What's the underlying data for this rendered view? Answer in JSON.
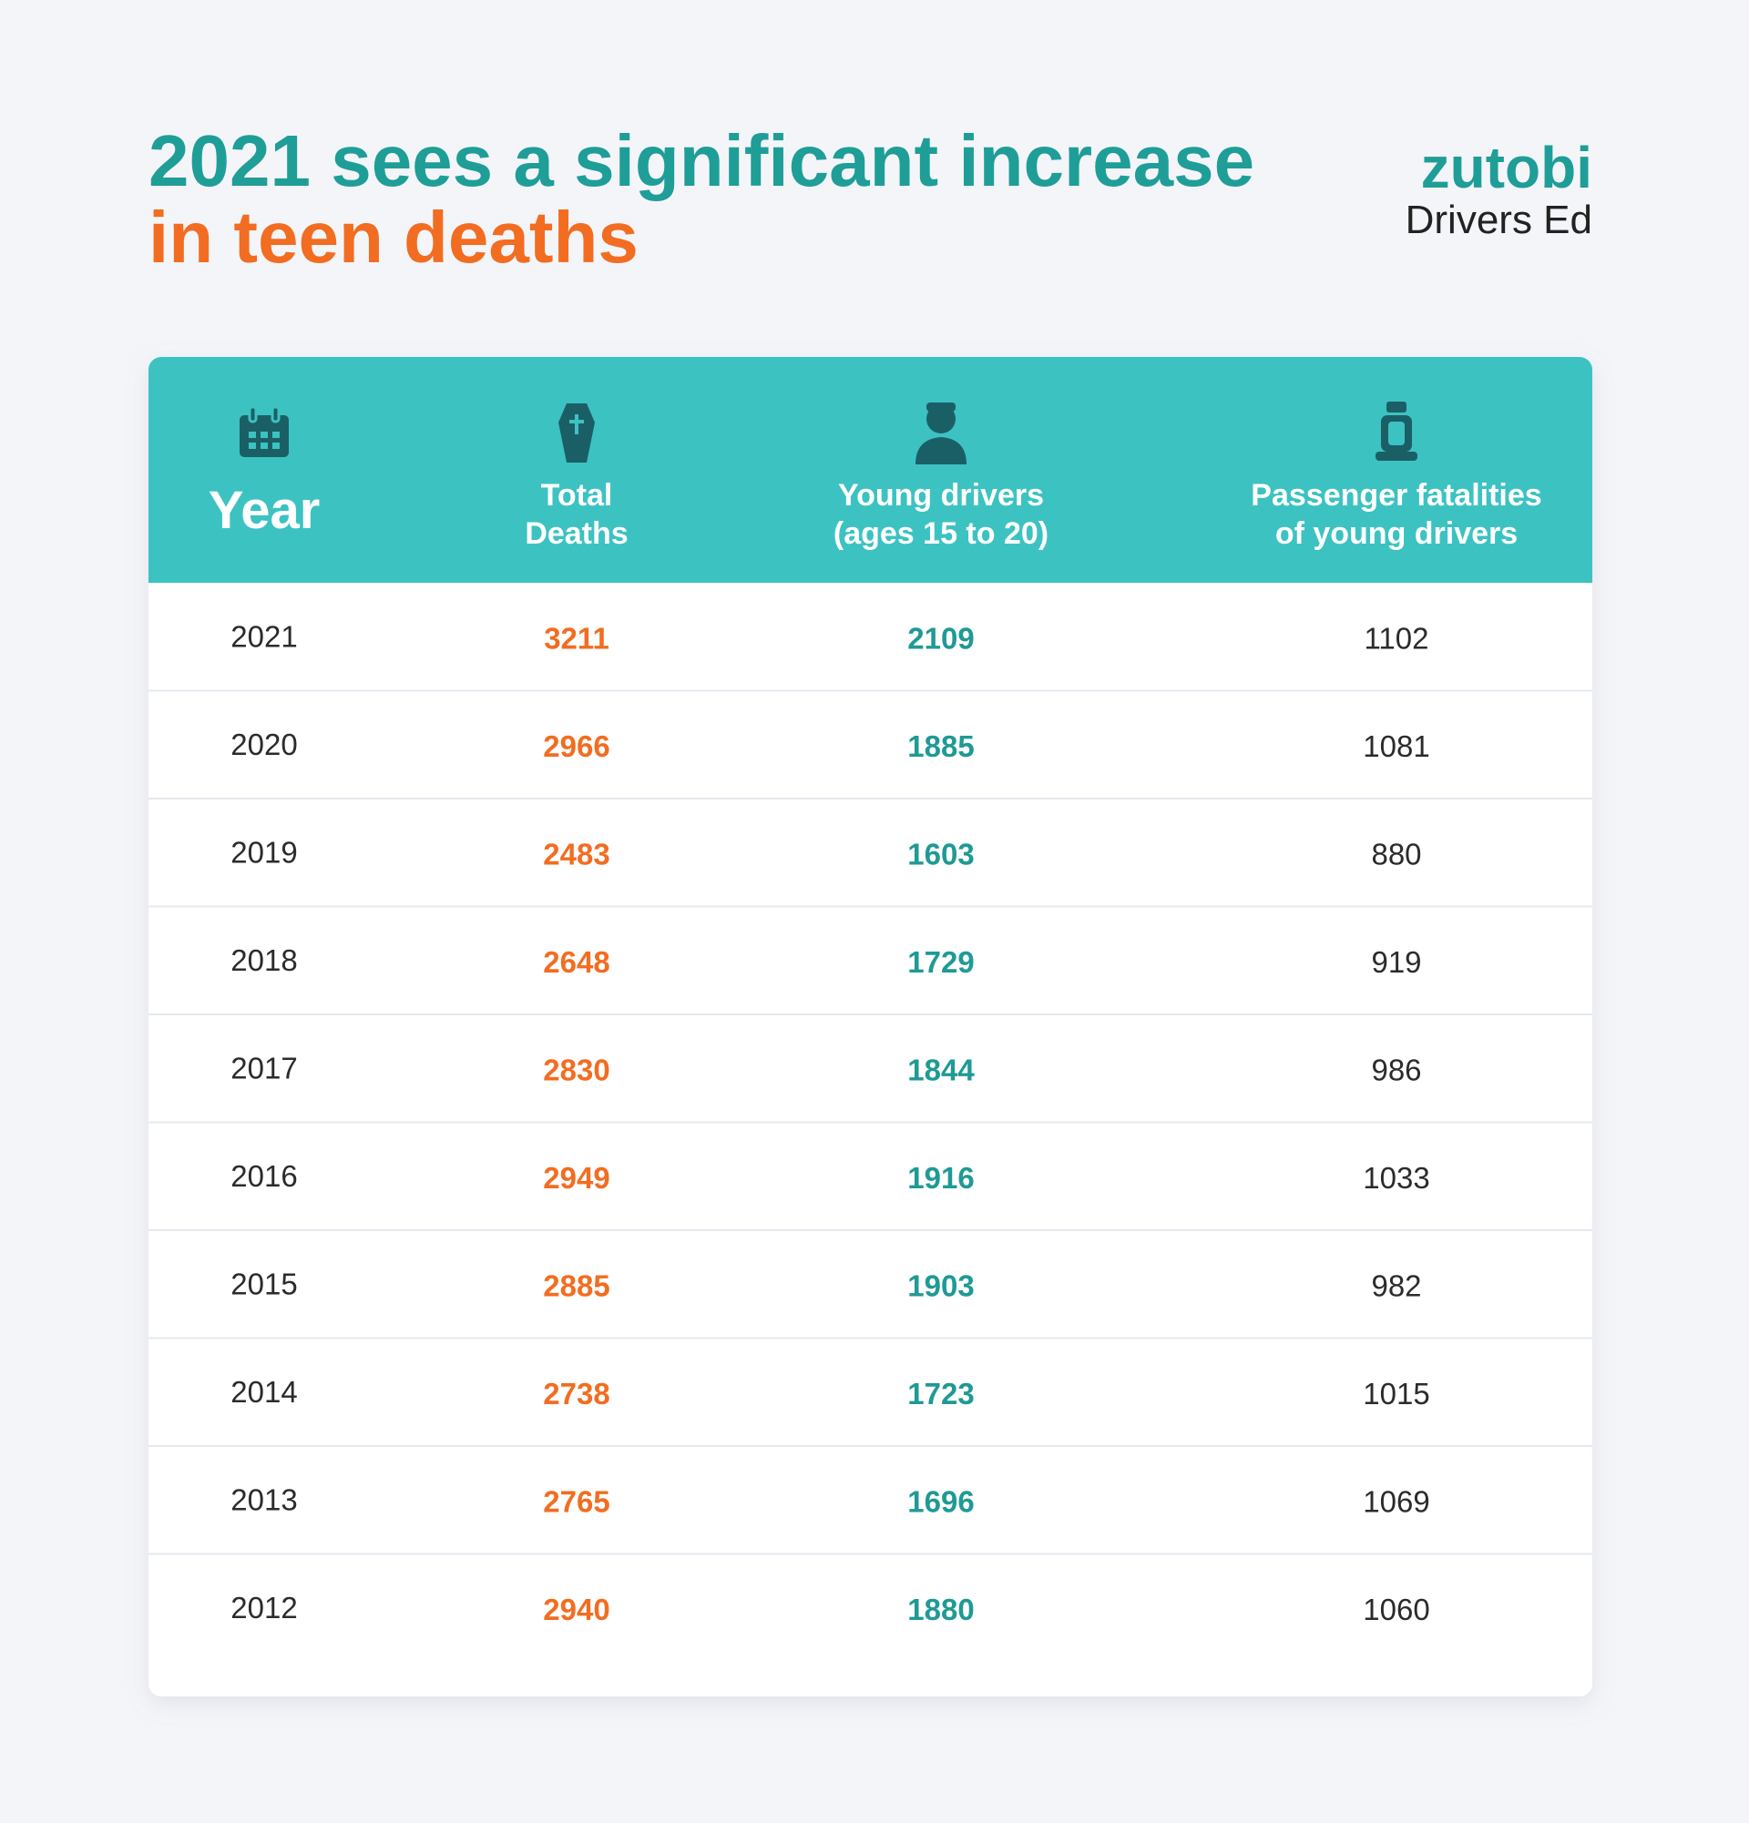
{
  "header": {
    "title_line1": "2021 sees a significant increase",
    "title_line2": "in teen deaths"
  },
  "logo": {
    "brand": "zutobi",
    "subtitle": "Drivers Ed"
  },
  "table": {
    "columns": [
      [
        "Year"
      ],
      [
        "Total",
        "Deaths"
      ],
      [
        "Young drivers",
        "(ages 15 to 20)"
      ],
      [
        "Passenger fatalities",
        "of young drivers"
      ]
    ],
    "rows": [
      [
        2021,
        3211,
        2109,
        1102
      ],
      [
        2020,
        2966,
        1885,
        1081
      ],
      [
        2019,
        2483,
        1603,
        880
      ],
      [
        2018,
        2648,
        1729,
        919
      ],
      [
        2017,
        2830,
        1844,
        986
      ],
      [
        2016,
        2949,
        1916,
        1033
      ],
      [
        2015,
        2885,
        1903,
        982
      ],
      [
        2014,
        2738,
        1723,
        1015
      ],
      [
        2013,
        2765,
        1696,
        1069
      ],
      [
        2012,
        2940,
        1880,
        1060
      ]
    ]
  }
}
